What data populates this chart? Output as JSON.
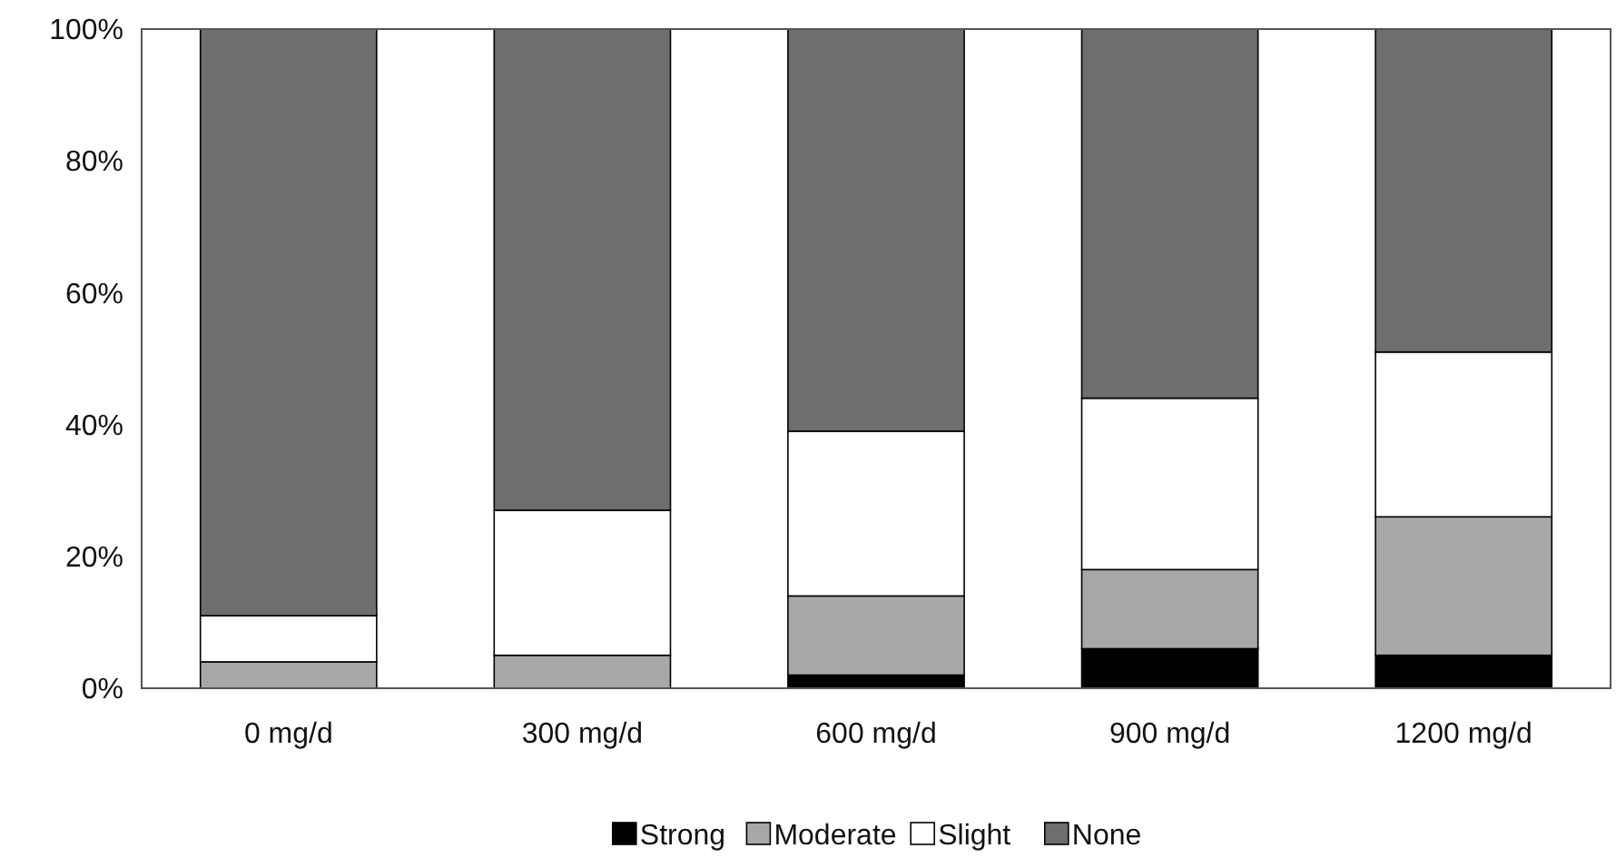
{
  "chart_data": {
    "type": "bar",
    "stacked": true,
    "categories": [
      "0 mg/d",
      "300 mg/d",
      "600 mg/d",
      "900 mg/d",
      "1200 mg/d"
    ],
    "series": [
      {
        "name": "Strong",
        "color": "#000000",
        "values": [
          0,
          0,
          2,
          6,
          5
        ]
      },
      {
        "name": "Moderate",
        "color": "#a8a8a8",
        "values": [
          4,
          5,
          12,
          12,
          21
        ]
      },
      {
        "name": "Slight",
        "color": "#ffffff",
        "values": [
          7,
          22,
          25,
          26,
          25
        ]
      },
      {
        "name": "None",
        "color": "#6e6e6e",
        "values": [
          89,
          73,
          61,
          56,
          49
        ]
      }
    ],
    "ylim": [
      0,
      100
    ],
    "yticks": [
      {
        "value": 0,
        "label": "0%"
      },
      {
        "value": 20,
        "label": "20%"
      },
      {
        "value": 40,
        "label": "40%"
      },
      {
        "value": 60,
        "label": "60%"
      },
      {
        "value": 80,
        "label": "80%"
      },
      {
        "value": 100,
        "label": "100%"
      }
    ],
    "legend": "bottom"
  }
}
